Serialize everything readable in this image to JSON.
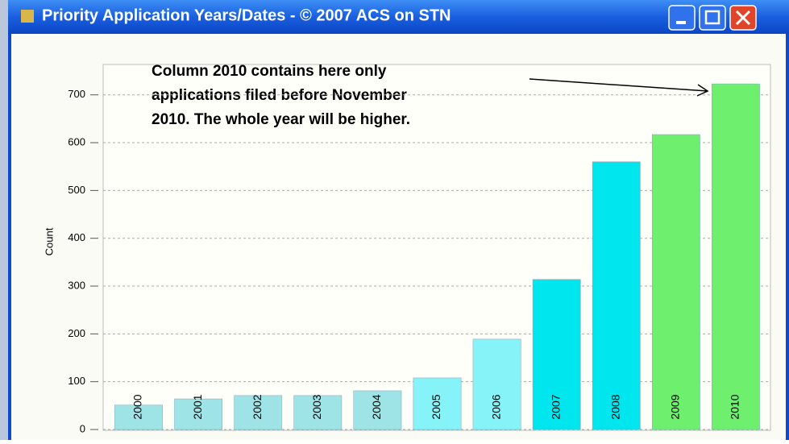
{
  "chart_data": {
    "type": "bar",
    "title": "Priority Application Years/Dates - © 2007 ACS on STN",
    "annotation": [
      "Column 2010 contains here only",
      "applications filed before November",
      "2010. The whole year will be higher."
    ],
    "y_label": "Count",
    "categories": [
      "2000",
      "2001",
      "2002",
      "2003",
      "2004",
      "2005",
      "2006",
      "2007",
      "2008",
      "2009",
      "2010"
    ],
    "values": [
      51,
      64,
      71,
      71,
      81,
      108,
      189,
      314,
      560,
      617,
      723
    ],
    "colors": [
      "#9ee3e6",
      "#9ee3e6",
      "#9ee3e6",
      "#9ee3e6",
      "#9ee3e6",
      "#85f3f8",
      "#85f3f8",
      "#00e6ee",
      "#00e6ee",
      "#6ef06e",
      "#6ef06e"
    ],
    "ylim": [
      0,
      740
    ],
    "yticks": [
      0,
      100,
      200,
      300,
      400,
      500,
      600,
      700
    ],
    "grid": true
  }
}
